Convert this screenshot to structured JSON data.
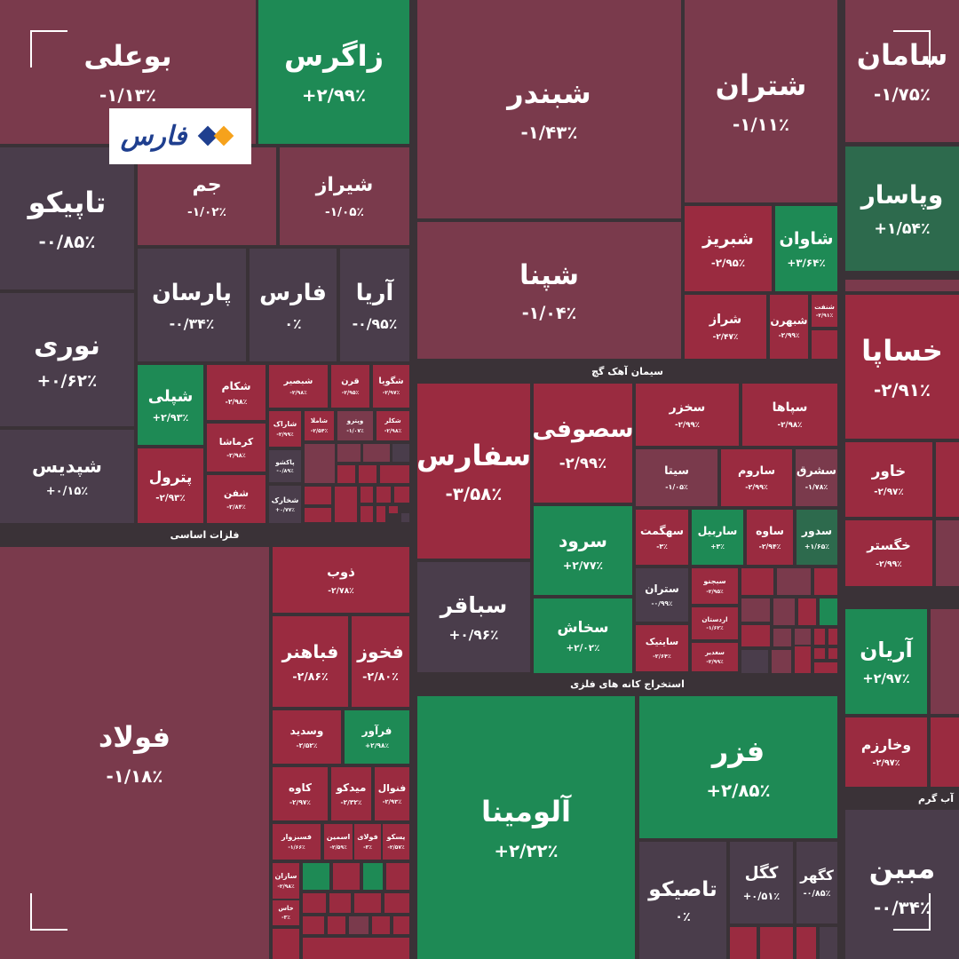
{
  "chart_data": {
    "type": "treemap",
    "logo": "فارس",
    "group_labels": [
      "سیمان آهک گچ",
      "فلزات اساسی",
      "استخراج کانه های فلزی",
      "آب گرم"
    ],
    "categories": [
      "بوعلی",
      "زاگرس",
      "شبندر",
      "شتران",
      "سامان",
      "تاپیکو",
      "جم",
      "شیراز",
      "وپاسار",
      "شپنا",
      "شبریز",
      "شاوان",
      "پارسان",
      "فارس",
      "آریا",
      "نوری",
      "شراز",
      "شبهرن",
      "شنفت",
      "خساپا",
      "شپلی",
      "شکام",
      "شبصیر",
      "قرن",
      "شگویا",
      "سفارس",
      "سصوفی",
      "سخزر",
      "سپاها",
      "شاراک",
      "شاملا",
      "وپترو",
      "شکلر",
      "شپدیس",
      "کرماشا",
      "پترول",
      "پاکشو",
      "شفن",
      "شخارک",
      "سیتا",
      "ساروم",
      "سشرق",
      "خاور",
      "سرود",
      "سهگمت",
      "ساربیل",
      "ساوه",
      "سدور",
      "خگستر",
      "فولاد",
      "ذوب",
      "سباقر",
      "سبجنو",
      "ستران",
      "سخاش",
      "اردستان",
      "آریان",
      "فباهنر",
      "فخوز",
      "ساینیک",
      "سغدیر",
      "آلومینا",
      "فزر",
      "وسدید",
      "فرآور",
      "وخارزم",
      "کاوه",
      "میدکو",
      "فنوال",
      "فسبزوار",
      "اسمین",
      "فولای",
      "یسکو",
      "تاصیکو",
      "کگل",
      "کگهر",
      "مبین",
      "سازان",
      "خاس"
    ],
    "values": [
      -1.13,
      2.99,
      -1.43,
      -1.11,
      -1.75,
      -0.85,
      -1.02,
      -1.05,
      1.54,
      -1.04,
      -2.95,
      3.64,
      -0.34,
      0,
      -0.95,
      0.62,
      -2.47,
      -2.99,
      -2.91,
      -2.91,
      2.93,
      -2.98,
      -2.98,
      -2.95,
      -2.97,
      -3.58,
      -2.99,
      -2.99,
      -2.98,
      -2.99,
      -2.54,
      -1.07,
      -2.98,
      0.15,
      -2.98,
      -2.93,
      -0.89,
      -2.84,
      0.77,
      -1.05,
      -2.99,
      -1.78,
      -2.97,
      2.77,
      -3,
      3,
      -2.94,
      1.65,
      -2.99,
      -1.18,
      -2.78,
      0.96,
      -2.95,
      -0.99,
      2.02,
      -1.62,
      2.97,
      -2.86,
      -2.8,
      -2.64,
      -2.99,
      2.22,
      2.85,
      -2.52,
      2.98,
      -2.97,
      -2.97,
      -2.32,
      -2.93,
      -1.66,
      -2.59,
      -3,
      -2.57,
      0,
      0.51,
      -0.85,
      -0.34,
      -2.98,
      -3
    ],
    "value_labels": [
      "-۱/۱۳٪",
      "+۲/۹۹٪",
      "-۱/۴۳٪",
      "-۱/۱۱٪",
      "-۱/۷۵٪",
      "-۰/۸۵٪",
      "-۱/۰۲٪",
      "-۱/۰۵٪",
      "+۱/۵۴٪",
      "-۱/۰۴٪",
      "-۲/۹۵٪",
      "+۳/۶۴٪",
      "-۰/۳۴٪",
      "۰٪",
      "-۰/۹۵٪",
      "+۰/۶۲٪",
      "-۲/۴۷٪",
      "-۲/۹۹٪",
      "-۲/۹۱٪",
      "-۲/۹۱٪",
      "+۲/۹۳٪",
      "-۲/۹۸٪",
      "-۲/۹۸٪",
      "-۲/۹۵٪",
      "-۲/۹۷٪",
      "-۳/۵۸٪",
      "-۲/۹۹٪",
      "-۲/۹۹٪",
      "-۲/۹۸٪",
      "-۲/۹۹٪",
      "-۲/۵۴٪",
      "-۱/۰۷٪",
      "-۲/۹۸٪",
      "+۰/۱۵٪",
      "-۲/۹۸٪",
      "-۲/۹۳٪",
      "-۰/۸۹٪",
      "-۲/۸۴٪",
      "+۰/۷۷٪",
      "-۱/۰۵٪",
      "-۲/۹۹٪",
      "-۱/۷۸٪",
      "-۲/۹۷٪",
      "+۲/۷۷٪",
      "-۳٪",
      "+۳٪",
      "-۲/۹۴٪",
      "+۱/۶۵٪",
      "-۲/۹۹٪",
      "-۱/۱۸٪",
      "-۲/۷۸٪",
      "+۰/۹۶٪",
      "-۲/۹۵٪",
      "-۰/۹۹٪",
      "+۲/۰۲٪",
      "-۱/۶۲٪",
      "+۲/۹۷٪",
      "-۲/۸۶٪",
      "-۲/۸۰٪",
      "-۲/۶۴٪",
      "-۲/۹۹٪",
      "+۲/۲۲٪",
      "+۲/۸۵٪",
      "-۲/۵۲٪",
      "+۲/۹۸٪",
      "-۲/۹۷٪",
      "-۲/۹۷٪",
      "-۲/۳۲٪",
      "-۲/۹۳٪",
      "-۱/۶۶٪",
      "-۲/۵۹٪",
      "-۳٪",
      "-۲/۵۷٪",
      "۰٪",
      "+۰/۵۱٪",
      "-۰/۸۵٪",
      "-۰/۳۴٪",
      "-۲/۹۸٪",
      "-۳٪"
    ],
    "colors": [
      "#7a3a4c",
      "#1e8a55",
      "#7a3a4c",
      "#7a3a4c",
      "#7a3a4c",
      "#4a3d4b",
      "#7a3a4c",
      "#7a3a4c",
      "#2d6a4d",
      "#7a3a4c",
      "#9a2b40",
      "#1e8a55",
      "#4a3d4b",
      "#4a3d4b",
      "#4a3d4b",
      "#4a3d4b",
      "#9a2b40",
      "#9a2b40",
      "#9a2b40",
      "#9a2b40",
      "#1e8a55",
      "#9a2b40",
      "#9a2b40",
      "#9a2b40",
      "#9a2b40",
      "#9a2b40",
      "#9a2b40",
      "#9a2b40",
      "#9a2b40",
      "#9a2b40",
      "#9a2b40",
      "#7a3a4c",
      "#9a2b40",
      "#4a3d4b",
      "#9a2b40",
      "#9a2b40",
      "#4a3d4b",
      "#9a2b40",
      "#4a3d4b",
      "#7a3a4c",
      "#9a2b40",
      "#7a3a4c",
      "#9a2b40",
      "#1e8a55",
      "#9a2b40",
      "#1e8a55",
      "#9a2b40",
      "#2d6a4d",
      "#9a2b40",
      "#7a3a4c",
      "#9a2b40",
      "#4a3d4b",
      "#9a2b40",
      "#4a3d4b",
      "#1e8a55",
      "#9a2b40",
      "#1e8a55",
      "#9a2b40",
      "#9a2b40",
      "#9a2b40",
      "#9a2b40",
      "#1e8a55",
      "#1e8a55",
      "#9a2b40",
      "#1e8a55",
      "#9a2b40",
      "#9a2b40",
      "#9a2b40",
      "#9a2b40",
      "#9a2b40",
      "#9a2b40",
      "#9a2b40",
      "#9a2b40",
      "#4a3d4b",
      "#4a3d4b",
      "#4a3d4b",
      "#4a3d4b",
      "#9a2b40",
      "#9a2b40"
    ]
  }
}
